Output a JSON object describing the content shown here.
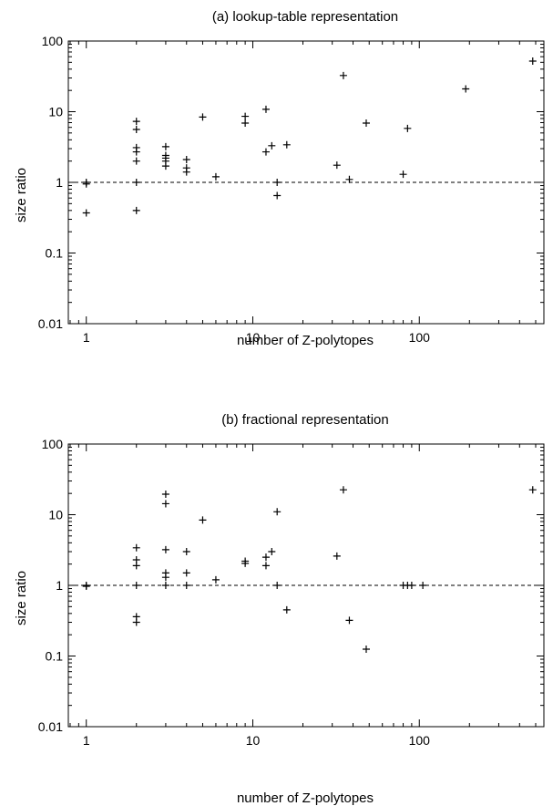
{
  "chart_data": [
    {
      "type": "scatter",
      "title": "(a) lookup-table representation",
      "xlabel": "number of Z-polytopes",
      "ylabel": "size ratio",
      "x_scale": "log",
      "y_scale": "log",
      "xlim": [
        0.78,
        560
      ],
      "ylim": [
        0.01,
        100
      ],
      "x_ticks": [
        1,
        10,
        100
      ],
      "x_tick_labels": [
        "1",
        "10",
        "100"
      ],
      "y_ticks": [
        0.01,
        0.1,
        1,
        10,
        100
      ],
      "y_tick_labels": [
        "0.01",
        "0.1",
        "1",
        "10",
        "100"
      ],
      "reference_line": {
        "y": 1,
        "style": "dashed"
      },
      "marker": "plus",
      "grid": false,
      "points": [
        {
          "x": 1,
          "y": 1.0
        },
        {
          "x": 1,
          "y": 0.95
        },
        {
          "x": 1,
          "y": 0.37
        },
        {
          "x": 2,
          "y": 7.3
        },
        {
          "x": 2,
          "y": 5.6
        },
        {
          "x": 2,
          "y": 3.1
        },
        {
          "x": 2,
          "y": 2.7
        },
        {
          "x": 2,
          "y": 2.0
        },
        {
          "x": 2,
          "y": 1.0
        },
        {
          "x": 2,
          "y": 0.4
        },
        {
          "x": 3,
          "y": 3.2
        },
        {
          "x": 3,
          "y": 2.4
        },
        {
          "x": 3,
          "y": 2.2
        },
        {
          "x": 3,
          "y": 2.0
        },
        {
          "x": 3,
          "y": 1.7
        },
        {
          "x": 4,
          "y": 2.1
        },
        {
          "x": 4,
          "y": 1.6
        },
        {
          "x": 4,
          "y": 1.4
        },
        {
          "x": 5,
          "y": 8.4
        },
        {
          "x": 6,
          "y": 1.2
        },
        {
          "x": 9,
          "y": 8.6
        },
        {
          "x": 9,
          "y": 6.9
        },
        {
          "x": 12,
          "y": 10.8
        },
        {
          "x": 12,
          "y": 2.7
        },
        {
          "x": 13,
          "y": 3.3
        },
        {
          "x": 14,
          "y": 1.0
        },
        {
          "x": 14,
          "y": 0.65
        },
        {
          "x": 16,
          "y": 3.4
        },
        {
          "x": 32,
          "y": 1.75
        },
        {
          "x": 35,
          "y": 32.5
        },
        {
          "x": 38,
          "y": 1.1
        },
        {
          "x": 48,
          "y": 6.9
        },
        {
          "x": 80,
          "y": 1.3
        },
        {
          "x": 85,
          "y": 5.8
        },
        {
          "x": 190,
          "y": 21
        },
        {
          "x": 480,
          "y": 52
        }
      ]
    },
    {
      "type": "scatter",
      "title": "(b) fractional representation",
      "xlabel": "number of Z-polytopes",
      "ylabel": "size ratio",
      "x_scale": "log",
      "y_scale": "log",
      "xlim": [
        0.78,
        560
      ],
      "ylim": [
        0.01,
        100
      ],
      "x_ticks": [
        1,
        10,
        100
      ],
      "x_tick_labels": [
        "1",
        "10",
        "100"
      ],
      "y_ticks": [
        0.01,
        0.1,
        1,
        10,
        100
      ],
      "y_tick_labels": [
        "0.01",
        "0.1",
        "1",
        "10",
        "100"
      ],
      "reference_line": {
        "y": 1,
        "style": "dashed"
      },
      "marker": "plus",
      "grid": false,
      "points": [
        {
          "x": 1,
          "y": 1.0
        },
        {
          "x": 1,
          "y": 0.97
        },
        {
          "x": 2,
          "y": 3.4
        },
        {
          "x": 2,
          "y": 2.3
        },
        {
          "x": 2,
          "y": 1.9
        },
        {
          "x": 2,
          "y": 1.0
        },
        {
          "x": 2,
          "y": 0.36
        },
        {
          "x": 2,
          "y": 0.3
        },
        {
          "x": 3,
          "y": 19.5
        },
        {
          "x": 3,
          "y": 14.3
        },
        {
          "x": 3,
          "y": 3.2
        },
        {
          "x": 3,
          "y": 1.5
        },
        {
          "x": 3,
          "y": 1.3
        },
        {
          "x": 3,
          "y": 1.0
        },
        {
          "x": 4,
          "y": 3.0
        },
        {
          "x": 4,
          "y": 1.5
        },
        {
          "x": 4,
          "y": 1.0
        },
        {
          "x": 5,
          "y": 8.4
        },
        {
          "x": 6,
          "y": 1.2
        },
        {
          "x": 9,
          "y": 2.2
        },
        {
          "x": 9,
          "y": 2.05
        },
        {
          "x": 12,
          "y": 2.5
        },
        {
          "x": 12,
          "y": 1.9
        },
        {
          "x": 13,
          "y": 3.0
        },
        {
          "x": 14,
          "y": 11
        },
        {
          "x": 14,
          "y": 1.0
        },
        {
          "x": 16,
          "y": 0.45
        },
        {
          "x": 32,
          "y": 2.6
        },
        {
          "x": 35,
          "y": 22.5
        },
        {
          "x": 38,
          "y": 0.32
        },
        {
          "x": 48,
          "y": 0.125
        },
        {
          "x": 80,
          "y": 1.0
        },
        {
          "x": 85,
          "y": 1.0
        },
        {
          "x": 90,
          "y": 1.0
        },
        {
          "x": 105,
          "y": 1.0
        },
        {
          "x": 480,
          "y": 22.5
        }
      ]
    }
  ]
}
